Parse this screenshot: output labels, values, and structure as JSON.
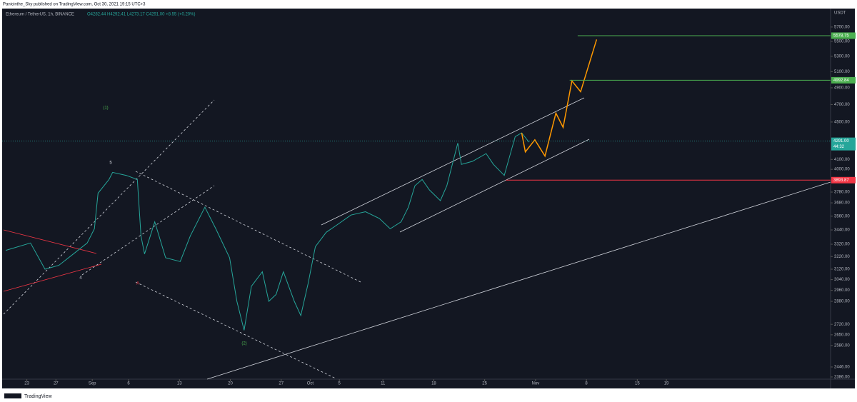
{
  "publisher_line": "Panicinthe_Sky published on TradingView.com, Oct 30, 2021 19:15 UTC+3",
  "footer": "TradingView",
  "chart_data": {
    "type": "line",
    "title": "Ethereum / TetherUS, 1h, BINANCE",
    "ohlc_text": "O4282.44 H4292.41 L4273.17 C4291.00 +8.55 (+0.20%)",
    "currency": "USDT",
    "log_scale": true,
    "grid": false,
    "color": "#26a69a",
    "x": [
      -2.9,
      0.5,
      2.5,
      4.4,
      6.4,
      8.3,
      9.3,
      9.8,
      11.3,
      11.8,
      13.7,
      15.2,
      15.7,
      16.2,
      17.6,
      19.1,
      21.1,
      22.5,
      24.5,
      26.0,
      27.9,
      28.9,
      29.9,
      30.9,
      32.4,
      33.3,
      34.3,
      35.3,
      36.8,
      37.7,
      38.7,
      39.7,
      41.2,
      42.6,
      44.6,
      46.6,
      48.5,
      50.0,
      51.5,
      52.5,
      53.4,
      54.4,
      55.4,
      56.9,
      57.8,
      59.3,
      59.8,
      61.3,
      63.2,
      64.2,
      65.7,
      67.2,
      68.1,
      69.1
    ],
    "values": [
      3270,
      3330,
      3120,
      3150,
      3240,
      3330,
      3450,
      3770,
      3900,
      3970,
      3940,
      3900,
      3390,
      3240,
      3510,
      3210,
      3180,
      3390,
      3640,
      3450,
      3210,
      2880,
      2680,
      2990,
      3100,
      2880,
      2930,
      3100,
      2880,
      2780,
      3010,
      3300,
      3420,
      3480,
      3570,
      3600,
      3540,
      3450,
      3510,
      3640,
      3840,
      3900,
      3800,
      3700,
      3840,
      4270,
      4050,
      4080,
      4160,
      4050,
      3940,
      4340,
      4380,
      4280
    ],
    "projection": {
      "color": "#ff9800",
      "x": [
        68.1,
        68.6,
        69.9,
        71.3,
        72.8,
        73.8,
        75.0,
        76.2,
        78.4
      ],
      "values": [
        4380,
        4178,
        4305,
        4134,
        4601,
        4440,
        4985,
        4853,
        5526
      ]
    },
    "levels": [
      {
        "value": 5578.75,
        "start": 75.8,
        "color": "#4caf50"
      },
      {
        "value": 4992.84,
        "start": 74.7,
        "color": "#4caf50"
      },
      {
        "value": 3893.87,
        "start": 65.9,
        "color": "#f23645"
      }
    ],
    "last_price": {
      "value": 4291,
      "label": "4291.00"
    },
    "countdown": "44:32",
    "annotations": [
      "(1)",
      "5",
      "4",
      "A",
      "(2)"
    ],
    "xlim": [
      -3.4,
      110.6
    ],
    "ylim": [
      2373,
      5968
    ],
    "xticks": [
      {
        "value": 0,
        "label": "23"
      },
      {
        "value": 4,
        "label": "27"
      },
      {
        "value": 9,
        "label": "Sep"
      },
      {
        "value": 14,
        "label": "6"
      },
      {
        "value": 21,
        "label": "13"
      },
      {
        "value": 28,
        "label": "20"
      },
      {
        "value": 35,
        "label": "27"
      },
      {
        "value": 39,
        "label": "Oct"
      },
      {
        "value": 43,
        "label": "5"
      },
      {
        "value": 49,
        "label": "11"
      },
      {
        "value": 56,
        "label": "18"
      },
      {
        "value": 63,
        "label": "25"
      },
      {
        "value": 70,
        "label": "Nov"
      },
      {
        "value": 77,
        "label": "8"
      },
      {
        "value": 84,
        "label": "15"
      },
      {
        "value": 88,
        "label": "19"
      }
    ],
    "yticks": [
      {
        "value": 5700,
        "label": "5700.00"
      },
      {
        "value": 5500,
        "label": "5500.00"
      },
      {
        "value": 5300,
        "label": "5300.00"
      },
      {
        "value": 5100,
        "label": "5100.00"
      },
      {
        "value": 4900,
        "label": "4900.00"
      },
      {
        "value": 4700,
        "label": "4700.00"
      },
      {
        "value": 4500,
        "label": "4500.00"
      },
      {
        "value": 4100,
        "label": "4100.00"
      },
      {
        "value": 4000,
        "label": "4000.00"
      },
      {
        "value": 3780,
        "label": "3780.00"
      },
      {
        "value": 3680,
        "label": "3680.00"
      },
      {
        "value": 3560,
        "label": "3560.00"
      },
      {
        "value": 3440,
        "label": "3440.00"
      },
      {
        "value": 3320,
        "label": "3320.00"
      },
      {
        "value": 3220,
        "label": "3220.00"
      },
      {
        "value": 3120,
        "label": "3120.00"
      },
      {
        "value": 3040,
        "label": "3040.00"
      },
      {
        "value": 2960,
        "label": "2960.00"
      },
      {
        "value": 2880,
        "label": "2880.00"
      },
      {
        "value": 2720,
        "label": "2720.00"
      },
      {
        "value": 2650,
        "label": "2650.00"
      },
      {
        "value": 2580,
        "label": "2580.00"
      },
      {
        "value": 2446,
        "label": "2446.00"
      },
      {
        "value": 2386,
        "label": "2386.00"
      }
    ]
  }
}
